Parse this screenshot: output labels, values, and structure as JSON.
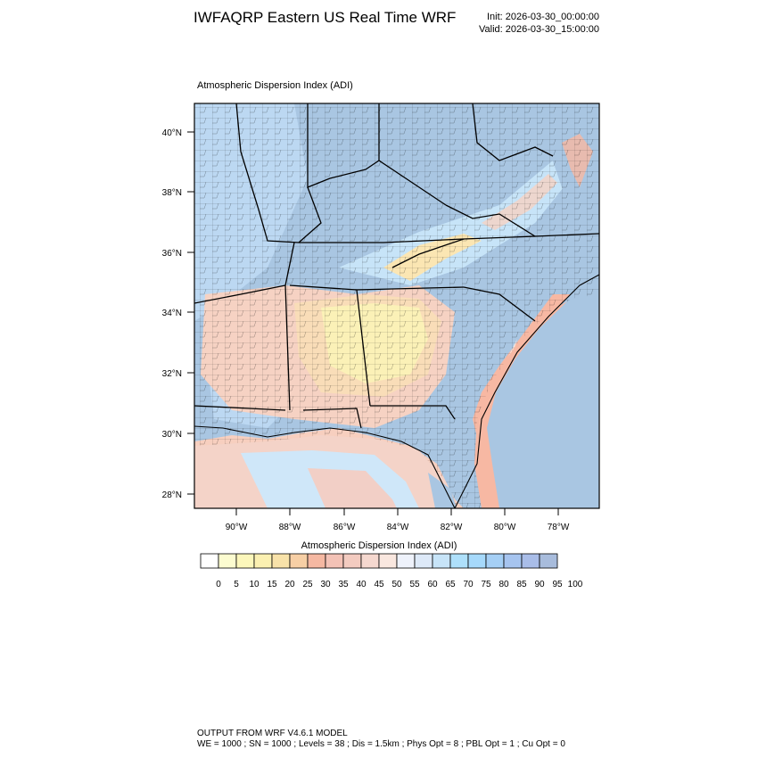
{
  "header": {
    "title": "IWFAQRP Eastern US Real Time WRF",
    "init": "Init: 2026-03-30_00:00:00",
    "valid": "Valid: 2026-03-30_15:00:00"
  },
  "panel": {
    "subtitle": "Atmospheric Dispersion Index   (ADI)"
  },
  "map": {
    "lat_ticks": [
      "40°N",
      "38°N",
      "36°N",
      "34°N",
      "32°N",
      "30°N",
      "28°N"
    ],
    "lon_ticks": [
      "90°W",
      "88°W",
      "86°W",
      "84°W",
      "82°W",
      "80°W",
      "78°W"
    ],
    "colors": {
      "land_high": "#a9c6e2",
      "land_mid": "#bcd8f2",
      "warm": "#f6d2c3",
      "yellow": "#fbf1b7",
      "water": "#a9c6e2",
      "coast_pink": "#f7b8a3",
      "boundary": "#000000"
    }
  },
  "colorbar": {
    "title": "Atmospheric Dispersion Index  (ADI)",
    "labels": [
      "0",
      "5",
      "10",
      "15",
      "20",
      "25",
      "30",
      "35",
      "40",
      "45",
      "50",
      "55",
      "60",
      "65",
      "70",
      "75",
      "80",
      "85",
      "90",
      "95",
      "100"
    ],
    "colors": [
      "#ffffff",
      "#fcfcd0",
      "#fcf7bb",
      "#fbf0b1",
      "#f8e2a9",
      "#f7cfa5",
      "#f5b8a2",
      "#f3c2b6",
      "#f3cbc0",
      "#f5d8cf",
      "#f9e7df",
      "#eef2fb",
      "#dde9f8",
      "#c7e4f8",
      "#aee0fb",
      "#a6d9fb",
      "#a5cff5",
      "#a6c4ef",
      "#a9bde8",
      "#a8bcdc"
    ]
  },
  "footer": {
    "line1": "OUTPUT FROM WRF V4.6.1 MODEL",
    "line2": "WE = 1000 ; SN = 1000 ; Levels = 38 ; Dis = 1.5km ; Phys Opt = 8 ; PBL Opt = 1 ; Cu Opt = 0"
  }
}
